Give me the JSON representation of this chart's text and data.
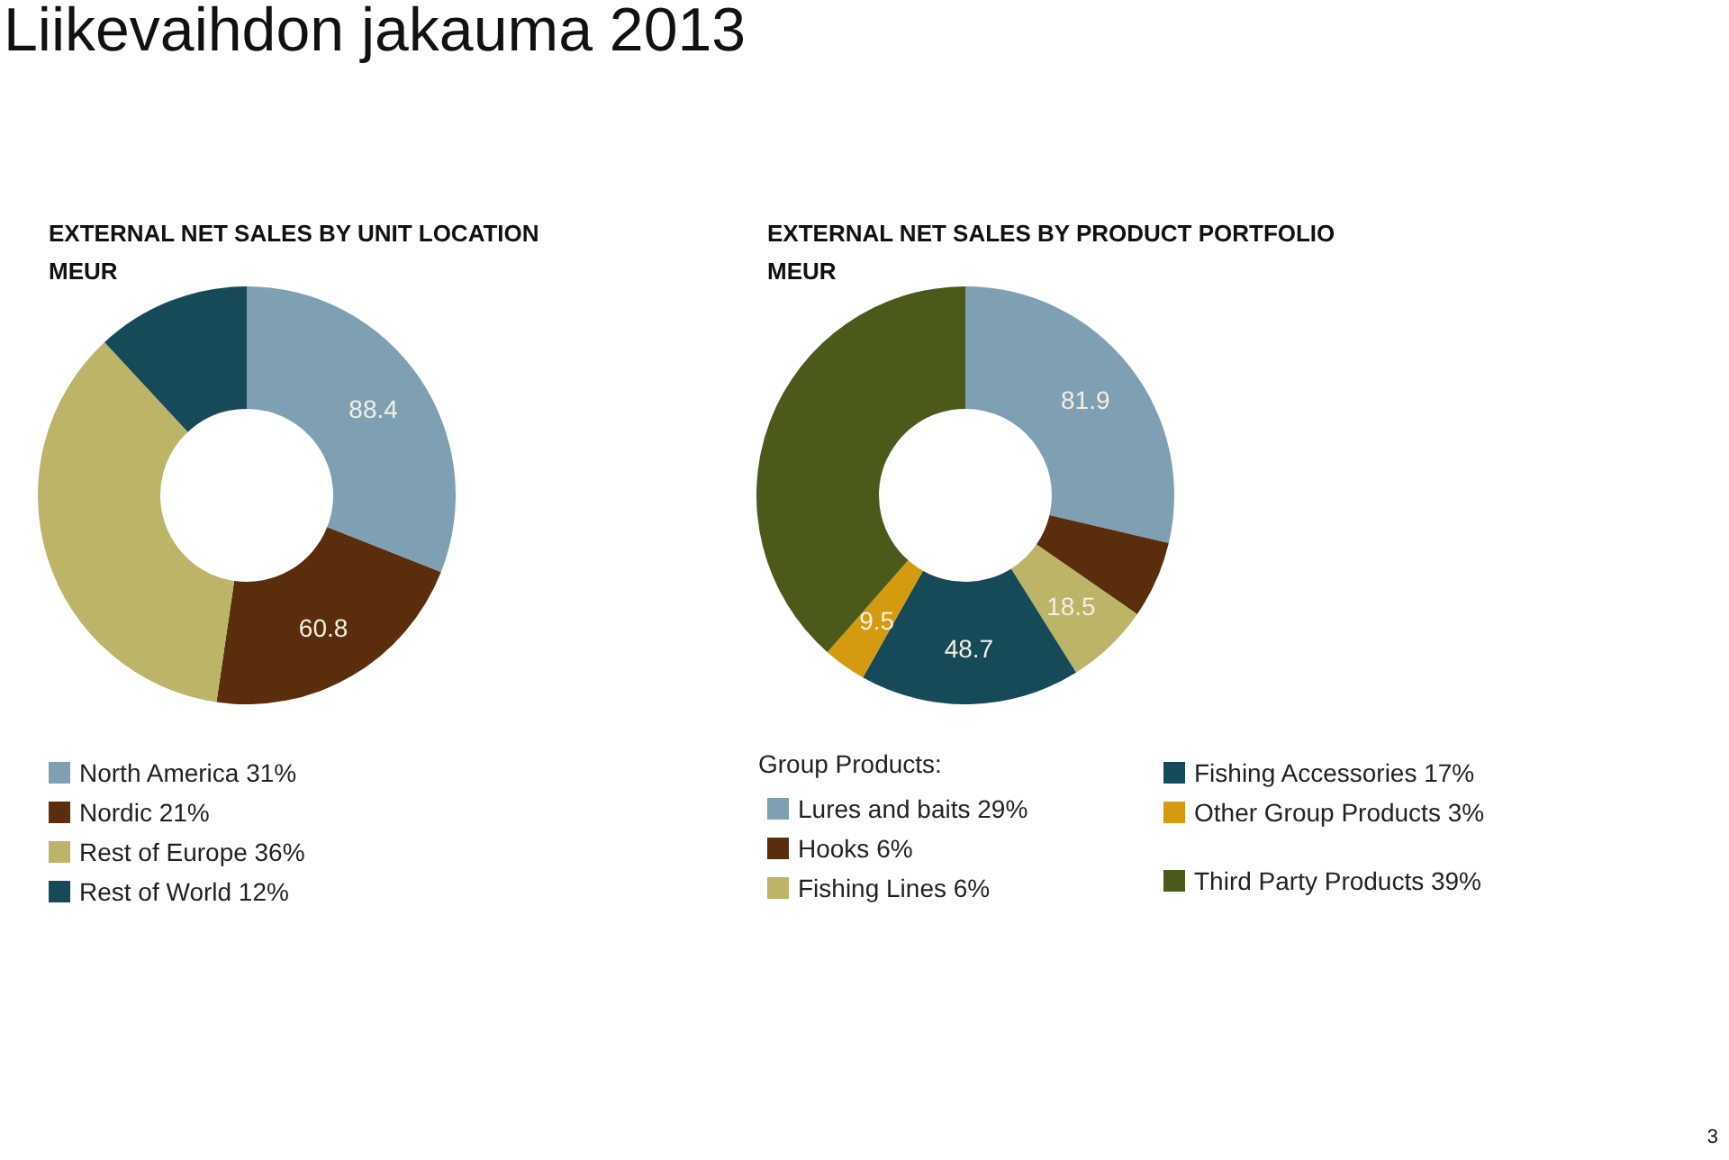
{
  "chart_data": [
    {
      "type": "donut",
      "title": "EXTERNAL NET SALES BY UNIT LOCATION",
      "subtitle": "MEUR",
      "categories": [
        "North America 31%",
        "Nordic 21%",
        "Rest of Europe 36%",
        "Rest of World 12%"
      ],
      "values": [
        88.4,
        60.8,
        102,
        34
      ],
      "colors": [
        "#7f9fb2",
        "#5a2d0c",
        "#bcb568",
        "#174a58"
      ],
      "value_labels": [
        "88.4",
        "60.8",
        null,
        null
      ],
      "legend": "bottom",
      "annotations": [
        "Liikevaihdon jakauma 2013"
      ]
    },
    {
      "type": "donut",
      "title": "EXTERNAL NET SALES BY PRODUCT PORTFOLIO",
      "subtitle": "MEUR",
      "legend_title": "Group Products:",
      "categories": [
        "Lures and baits 29%",
        "Hooks 6%",
        "Fishing Lines 6%",
        "Fishing Accessories 17%",
        "Other Group Products 3%",
        "Third Party Products 39%"
      ],
      "values": [
        81.9,
        17,
        18.5,
        48.7,
        9.5,
        110
      ],
      "colors": [
        "#7f9fb2",
        "#5a2d0c",
        "#bcb568",
        "#174a58",
        "#d49a10",
        "#4b5a1a"
      ],
      "value_labels": [
        "81.9",
        null,
        "18.5",
        "48.7",
        "9.5",
        null
      ],
      "legend": "bottom",
      "annotations": [
        "3"
      ]
    }
  ]
}
